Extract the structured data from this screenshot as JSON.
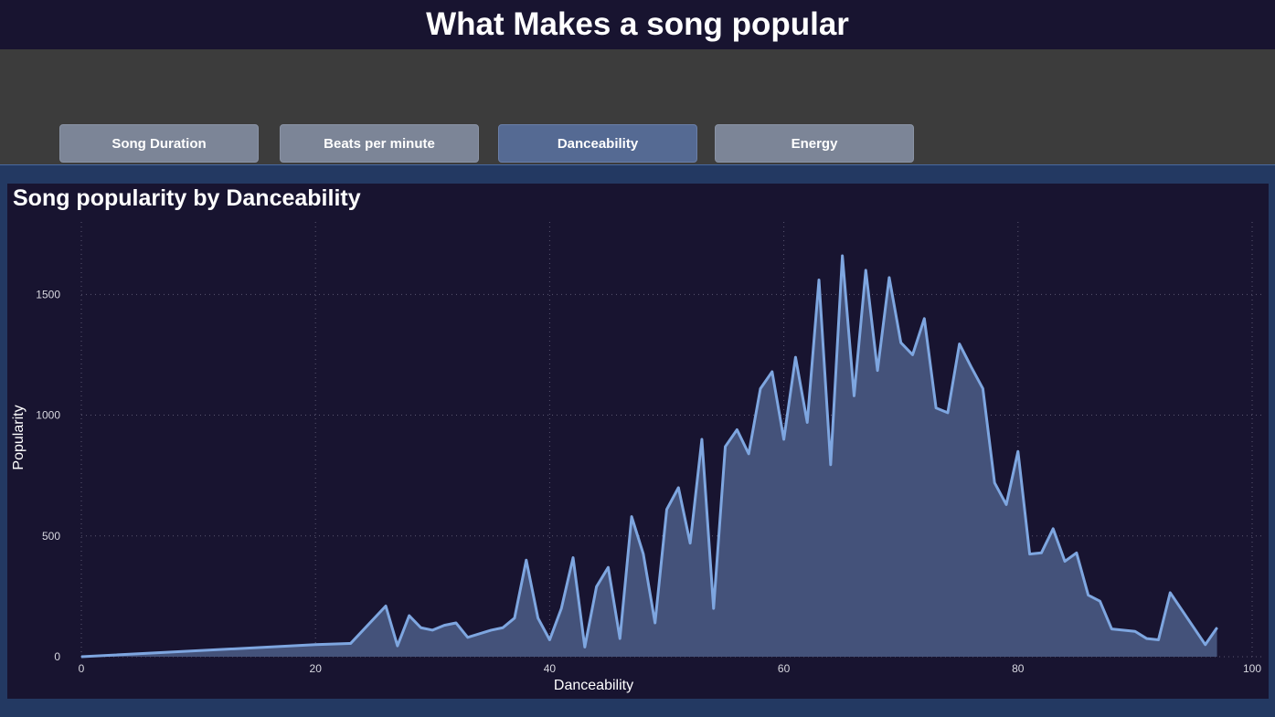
{
  "header": {
    "title": "What Makes a song popular"
  },
  "tabs": [
    {
      "label": "Song Duration",
      "active": false
    },
    {
      "label": "Beats per minute",
      "active": false
    },
    {
      "label": "Danceability",
      "active": true
    },
    {
      "label": "Energy",
      "active": false
    }
  ],
  "colors": {
    "line": "#7ea6e0",
    "area": "#44527a",
    "background": "#181430",
    "panel": "#233962"
  },
  "chart_data": {
    "type": "area",
    "title": "Song popularity by Danceability",
    "xlabel": "Danceability",
    "ylabel": "Popularity",
    "xlim": [
      0,
      100
    ],
    "ylim": [
      0,
      1800
    ],
    "xticks": [
      0,
      20,
      40,
      60,
      80,
      100
    ],
    "yticks": [
      0,
      500,
      1000,
      1500
    ],
    "grid": true,
    "x": [
      0,
      20,
      23,
      26,
      27,
      28,
      29,
      30,
      31,
      32,
      33,
      35,
      36,
      37,
      38,
      39,
      40,
      41,
      42,
      43,
      44,
      45,
      46,
      47,
      48,
      49,
      50,
      51,
      52,
      53,
      54,
      55,
      56,
      57,
      58,
      59,
      60,
      61,
      62,
      63,
      64,
      65,
      66,
      67,
      68,
      69,
      70,
      71,
      72,
      73,
      74,
      75,
      76,
      77,
      78,
      79,
      80,
      81,
      82,
      83,
      84,
      85,
      86,
      87,
      88,
      90,
      91,
      92,
      93,
      96,
      97
    ],
    "values": [
      0,
      50,
      55,
      210,
      45,
      170,
      120,
      110,
      130,
      140,
      80,
      110,
      120,
      160,
      400,
      160,
      70,
      200,
      410,
      40,
      290,
      370,
      75,
      580,
      425,
      140,
      610,
      700,
      470,
      900,
      200,
      870,
      940,
      840,
      1110,
      1180,
      900,
      1240,
      970,
      1560,
      795,
      1660,
      1080,
      1600,
      1185,
      1570,
      1300,
      1250,
      1400,
      1030,
      1010,
      1295,
      1200,
      1110,
      720,
      630,
      850,
      425,
      430,
      530,
      395,
      430,
      255,
      230,
      115,
      105,
      75,
      70,
      265,
      50,
      120
    ]
  }
}
